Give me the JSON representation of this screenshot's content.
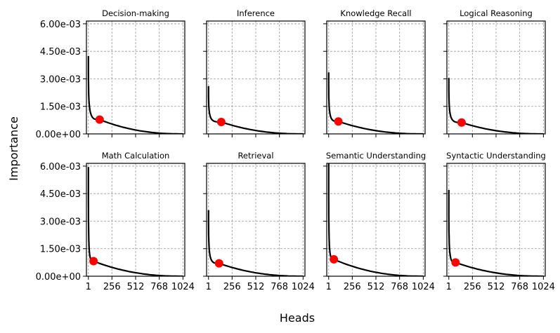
{
  "chart_data": {
    "type": "line",
    "xlabel": "Heads",
    "ylabel": "Importance",
    "xlim": [
      -20,
      1044
    ],
    "ylim": [
      0,
      0.00615
    ],
    "xticks": [
      1,
      256,
      512,
      768,
      1024
    ],
    "xtick_labels": [
      "1",
      "256",
      "512",
      "768",
      "1024"
    ],
    "yticks": [
      0,
      0.0015,
      0.003,
      0.0045,
      0.006
    ],
    "ytick_labels": [
      "0.00e+00",
      "1.50e-03",
      "3.00e-03",
      "4.50e-03",
      "6.00e-03"
    ],
    "grid": true,
    "line_color": "#000000",
    "marker_color": "#ff0000",
    "panels": [
      {
        "title": "Decision-making",
        "start": 0.00425,
        "marker": [
          123,
          0.00078
        ]
      },
      {
        "title": "Inference",
        "start": 0.0026,
        "marker": [
          139,
          0.00065
        ]
      },
      {
        "title": "Knowledge Recall",
        "start": 0.00335,
        "marker": [
          106,
          0.00068
        ]
      },
      {
        "title": "Logical Reasoning",
        "start": 0.00305,
        "marker": [
          139,
          0.00062
        ]
      },
      {
        "title": "Math Calculation",
        "start": 0.00595,
        "marker": [
          57,
          0.00082
        ]
      },
      {
        "title": "Retrieval",
        "start": 0.0036,
        "marker": [
          115,
          0.0007
        ]
      },
      {
        "title": "Semantic Understanding",
        "start": 0.0062,
        "marker": [
          57,
          0.00092
        ]
      },
      {
        "title": "Syntactic Understanding",
        "start": 0.0047,
        "marker": [
          74,
          0.00075
        ]
      }
    ]
  }
}
